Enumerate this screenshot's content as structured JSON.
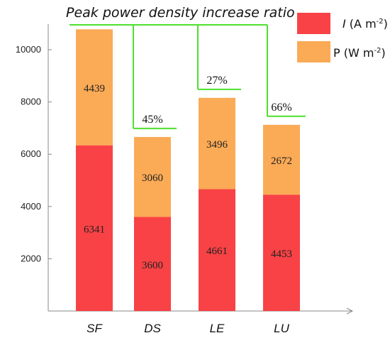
{
  "chart_data": {
    "type": "bar",
    "stacked": true,
    "title": "Peak power density increase ratio",
    "categories": [
      "SF",
      "DS",
      "LE",
      "LU"
    ],
    "series": [
      {
        "name": "I (A m-2)",
        "label_main": "I",
        "label_unit": " (A m",
        "label_sup": "-2",
        "label_close": ")",
        "color": "#f84245",
        "values": [
          6341,
          3600,
          4661,
          4453
        ]
      },
      {
        "name": "P (W m-2)",
        "label_main": "P",
        "label_unit": " (W m",
        "label_sup": "-2",
        "label_close": ")",
        "color": "#fbaa56",
        "values": [
          4439,
          3060,
          3496,
          2672
        ]
      }
    ],
    "increase_ratios": [
      {
        "category": "DS",
        "label": "45%"
      },
      {
        "category": "LE",
        "label": "27%"
      },
      {
        "category": "LU",
        "label": "66%"
      }
    ],
    "yticks": [
      2000,
      4000,
      6000,
      8000,
      10000
    ],
    "ylim": [
      0,
      11000
    ],
    "grid": false,
    "legend_position": "top-right",
    "bracket_color": "#4de02c",
    "axis_color": "#888888"
  }
}
